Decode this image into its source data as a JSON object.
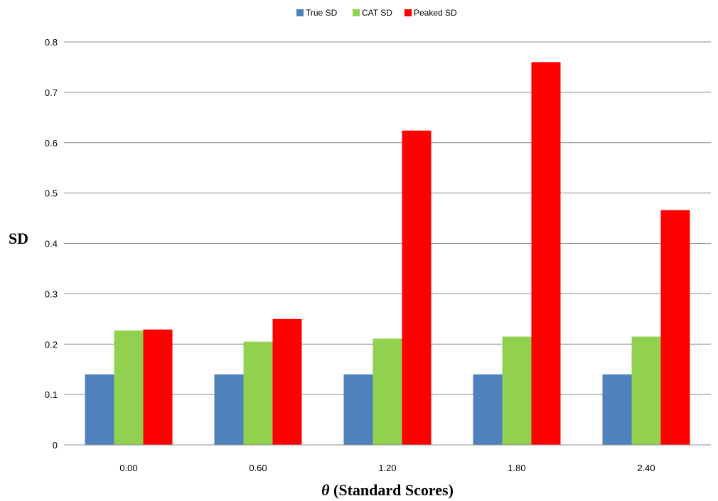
{
  "chart_data": {
    "type": "bar",
    "categories": [
      "0.00",
      "0.60",
      "1.20",
      "1.80",
      "2.40"
    ],
    "series": [
      {
        "name": "True SD",
        "color": "#4f81bd",
        "values": [
          0.14,
          0.14,
          0.14,
          0.14,
          0.14
        ]
      },
      {
        "name": "CAT SD",
        "color": "#92d050",
        "values": [
          0.227,
          0.205,
          0.211,
          0.215,
          0.215
        ]
      },
      {
        "name": "Peaked SD",
        "color": "#ff0000",
        "values": [
          0.229,
          0.25,
          0.624,
          0.76,
          0.466
        ]
      }
    ],
    "xlabel_symbol": "θ",
    "xlabel_text": " (Standard Scores)",
    "ylabel": "SD",
    "ylim": [
      0,
      0.8
    ],
    "yticks": [
      "0",
      "0.1",
      "0.2",
      "0.3",
      "0.4",
      "0.5",
      "0.6",
      "0.7",
      "0.8"
    ],
    "ytick_values": [
      0,
      0.1,
      0.2,
      0.3,
      0.4,
      0.5,
      0.6,
      0.7,
      0.8
    ],
    "grid": true,
    "legend_position": "top"
  }
}
